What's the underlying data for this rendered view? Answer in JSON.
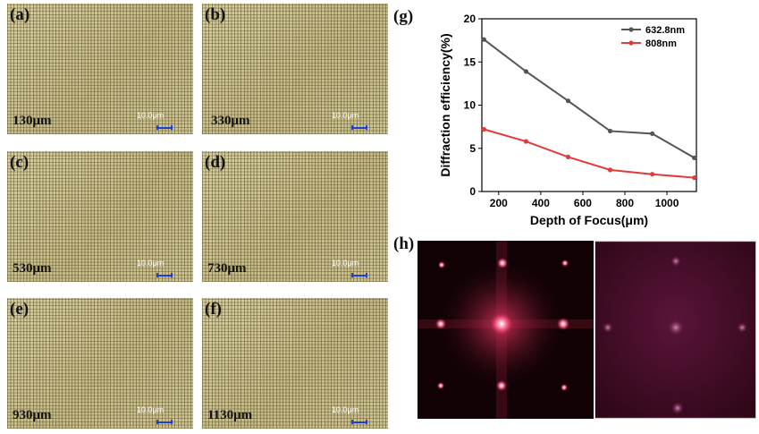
{
  "panels": [
    {
      "label": "(a)",
      "depth": "130μm",
      "scale": "10.0μm"
    },
    {
      "label": "(b)",
      "depth": "330μm",
      "scale": "10.0μm"
    },
    {
      "label": "(c)",
      "depth": "530μm",
      "scale": "10.0μm"
    },
    {
      "label": "(d)",
      "depth": "730μm",
      "scale": "10.0μm"
    },
    {
      "label": "(e)",
      "depth": "930μm",
      "scale": "10.0μm"
    },
    {
      "label": "(f)",
      "depth": "1130μm",
      "scale": "10.0μm"
    }
  ],
  "fig_g_label": "(g)",
  "fig_h_label": "(h)",
  "chart_data": {
    "type": "line",
    "title": "",
    "xlabel": "Depth of Focus(μm)",
    "ylabel": "Diffraction efficiency(%)",
    "x": [
      130,
      330,
      530,
      730,
      930,
      1130
    ],
    "xlim": [
      120,
      1140
    ],
    "ylim": [
      0,
      20
    ],
    "xticks": [
      200,
      400,
      600,
      800,
      1000
    ],
    "yticks": [
      0,
      5,
      10,
      15,
      20
    ],
    "grid": false,
    "legend": "top-right",
    "series": [
      {
        "name": "632.8nm",
        "color": "#555555",
        "values": [
          17.6,
          13.9,
          10.5,
          7.0,
          6.7,
          3.9
        ]
      },
      {
        "name": "808nm",
        "color": "#e03c3c",
        "values": [
          7.2,
          5.8,
          4.0,
          2.5,
          2.0,
          1.6
        ]
      }
    ]
  }
}
